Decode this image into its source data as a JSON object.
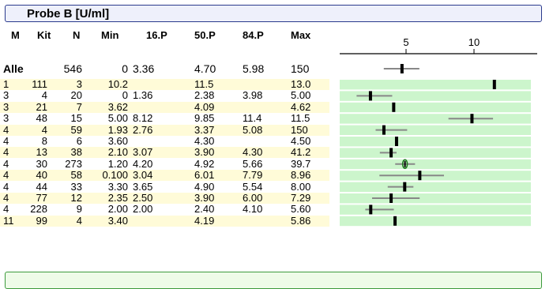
{
  "title": "Probe B [U/ml]",
  "chart_data": {
    "type": "table",
    "title": "Probe B [U/ml]",
    "columns": [
      "M",
      "Kit",
      "N",
      "Min",
      "16.P",
      "50.P",
      "84.P",
      "Max"
    ],
    "axis": {
      "ticks": [
        5,
        10
      ],
      "tick_labels": [
        "5",
        "10"
      ],
      "xlim": [
        -0.5,
        14.5
      ]
    },
    "rows": [
      {
        "m": "Alle",
        "kit": "",
        "n": "546",
        "min": "0",
        "p16": "3.36",
        "p50": "4.70",
        "p84": "5.98",
        "max": "150",
        "med": 4.7,
        "lo": 3.36,
        "hi": 5.98
      },
      {
        "m": "1",
        "kit": "111",
        "n": "3",
        "min": "10.2",
        "p16": "",
        "p50": "11.5",
        "p84": "",
        "max": "13.0",
        "med": 11.5,
        "lo": null,
        "hi": null
      },
      {
        "m": "3",
        "kit": "4",
        "n": "20",
        "min": "0",
        "p16": "1.36",
        "p50": "2.38",
        "p84": "3.98",
        "max": "5.00",
        "med": 2.38,
        "lo": 1.36,
        "hi": 3.98
      },
      {
        "m": "3",
        "kit": "21",
        "n": "7",
        "min": "3.62",
        "p16": "",
        "p50": "4.09",
        "p84": "",
        "max": "4.62",
        "med": 4.09,
        "lo": null,
        "hi": null
      },
      {
        "m": "3",
        "kit": "48",
        "n": "15",
        "min": "5.00",
        "p16": "8.12",
        "p50": "9.85",
        "p84": "11.4",
        "max": "11.5",
        "med": 9.85,
        "lo": 8.12,
        "hi": 11.4
      },
      {
        "m": "4",
        "kit": "4",
        "n": "59",
        "min": "1.93",
        "p16": "2.76",
        "p50": "3.37",
        "p84": "5.08",
        "max": "150",
        "med": 3.37,
        "lo": 2.76,
        "hi": 5.08
      },
      {
        "m": "4",
        "kit": "8",
        "n": "6",
        "min": "3.60",
        "p16": "",
        "p50": "4.30",
        "p84": "",
        "max": "4.50",
        "med": 4.3,
        "lo": null,
        "hi": null
      },
      {
        "m": "4",
        "kit": "13",
        "n": "38",
        "min": "2.10",
        "p16": "3.07",
        "p50": "3.90",
        "p84": "4.30",
        "max": "41.2",
        "med": 3.9,
        "lo": 3.07,
        "hi": 4.3
      },
      {
        "m": "4",
        "kit": "30",
        "n": "273",
        "min": "1.20",
        "p16": "4.20",
        "p50": "4.92",
        "p84": "5.66",
        "max": "39.7",
        "med": 4.92,
        "lo": 4.2,
        "hi": 5.66,
        "highlight": true
      },
      {
        "m": "4",
        "kit": "40",
        "n": "58",
        "min": "0.100",
        "p16": "3.04",
        "p50": "6.01",
        "p84": "7.79",
        "max": "8.96",
        "med": 6.01,
        "lo": 3.04,
        "hi": 7.79
      },
      {
        "m": "4",
        "kit": "44",
        "n": "33",
        "min": "3.30",
        "p16": "3.65",
        "p50": "4.90",
        "p84": "5.54",
        "max": "8.00",
        "med": 4.9,
        "lo": 3.65,
        "hi": 5.54
      },
      {
        "m": "4",
        "kit": "77",
        "n": "12",
        "min": "2.35",
        "p16": "2.50",
        "p50": "3.90",
        "p84": "6.00",
        "max": "7.29",
        "med": 3.9,
        "lo": 2.5,
        "hi": 6.0
      },
      {
        "m": "4",
        "kit": "228",
        "n": "9",
        "min": "2.00",
        "p16": "2.00",
        "p50": "2.40",
        "p84": "4.10",
        "max": "5.60",
        "med": 2.4,
        "lo": 2.0,
        "hi": 4.1
      },
      {
        "m": "11",
        "kit": "99",
        "n": "4",
        "min": "3.40",
        "p16": "",
        "p50": "4.19",
        "p84": "",
        "max": "5.86",
        "med": 4.19,
        "lo": null,
        "hi": null
      }
    ]
  }
}
